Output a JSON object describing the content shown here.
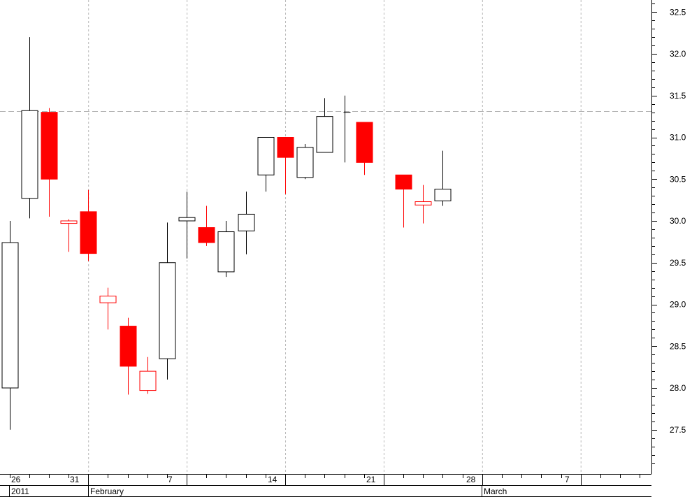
{
  "chart_data": {
    "type": "candlestick",
    "title": "",
    "xlabel": "",
    "ylabel": "",
    "ylim": [
      27.0,
      32.7
    ],
    "y_ticks": [
      "27.5",
      "28.0",
      "28.5",
      "29.0",
      "29.5",
      "30.0",
      "30.5",
      "31.0",
      "31.5",
      "32.0",
      "32.5"
    ],
    "reference_line": 31.31,
    "grid": "vertical dotted at Mondays",
    "up_color": "#ffffff",
    "down_color": "#ff0000",
    "date_labels": [
      {
        "label": "26",
        "row": 1
      },
      {
        "label": "31",
        "row": 1
      },
      {
        "label": "7",
        "row": 1
      },
      {
        "label": "14",
        "row": 1
      },
      {
        "label": "21",
        "row": 1
      },
      {
        "label": "28",
        "row": 1
      },
      {
        "label": "7",
        "row": 1
      },
      {
        "label": "2011",
        "row": 2
      },
      {
        "label": "February",
        "row": 2
      },
      {
        "label": "March",
        "row": 2
      }
    ],
    "candles": [
      {
        "date": "2011-01-25",
        "open": 28.0,
        "high": 30.0,
        "low": 27.5,
        "close": 29.74
      },
      {
        "date": "2011-01-26",
        "open": 30.27,
        "high": 32.2,
        "low": 30.03,
        "close": 31.32
      },
      {
        "date": "2011-01-27",
        "open": 31.3,
        "high": 31.35,
        "low": 30.05,
        "close": 30.5
      },
      {
        "date": "2011-01-28",
        "open": 30.0,
        "high": 30.02,
        "low": 29.63,
        "close": 29.97
      },
      {
        "date": "2011-01-31",
        "open": 30.11,
        "high": 30.37,
        "low": 29.52,
        "close": 29.61
      },
      {
        "date": "2011-02-01",
        "open": 29.1,
        "high": 29.2,
        "low": 28.7,
        "close": 29.02
      },
      {
        "date": "2011-02-02",
        "open": 28.74,
        "high": 28.84,
        "low": 27.92,
        "close": 28.26
      },
      {
        "date": "2011-02-03",
        "open": 28.2,
        "high": 28.37,
        "low": 27.93,
        "close": 27.97
      },
      {
        "date": "2011-02-04",
        "open": 28.35,
        "high": 29.98,
        "low": 28.1,
        "close": 29.5
      },
      {
        "date": "2011-02-07",
        "open": 30.0,
        "high": 30.35,
        "low": 29.55,
        "close": 30.04
      },
      {
        "date": "2011-02-08",
        "open": 29.92,
        "high": 30.18,
        "low": 29.7,
        "close": 29.74
      },
      {
        "date": "2011-02-09",
        "open": 29.39,
        "high": 30.0,
        "low": 29.33,
        "close": 29.87
      },
      {
        "date": "2011-02-10",
        "open": 29.88,
        "high": 30.35,
        "low": 29.6,
        "close": 30.08
      },
      {
        "date": "2011-02-11",
        "open": 30.55,
        "high": 31.0,
        "low": 30.35,
        "close": 31.0
      },
      {
        "date": "2011-02-14",
        "open": 31.0,
        "high": 31.0,
        "low": 30.32,
        "close": 30.76
      },
      {
        "date": "2011-02-15",
        "open": 30.52,
        "high": 30.92,
        "low": 30.5,
        "close": 30.88
      },
      {
        "date": "2011-02-16",
        "open": 30.82,
        "high": 31.47,
        "low": 30.82,
        "close": 31.25
      },
      {
        "date": "2011-02-17",
        "open": 31.3,
        "high": 31.5,
        "low": 30.7,
        "close": 31.3
      },
      {
        "date": "2011-02-18",
        "open": 31.18,
        "high": 31.18,
        "low": 30.55,
        "close": 30.7
      },
      {
        "date": "2011-02-22",
        "open": 30.55,
        "high": 30.55,
        "low": 29.92,
        "close": 30.38
      },
      {
        "date": "2011-02-23",
        "open": 30.23,
        "high": 30.43,
        "low": 29.97,
        "close": 30.19
      },
      {
        "date": "2011-02-24",
        "open": 30.24,
        "high": 30.84,
        "low": 30.18,
        "close": 30.38
      }
    ]
  }
}
